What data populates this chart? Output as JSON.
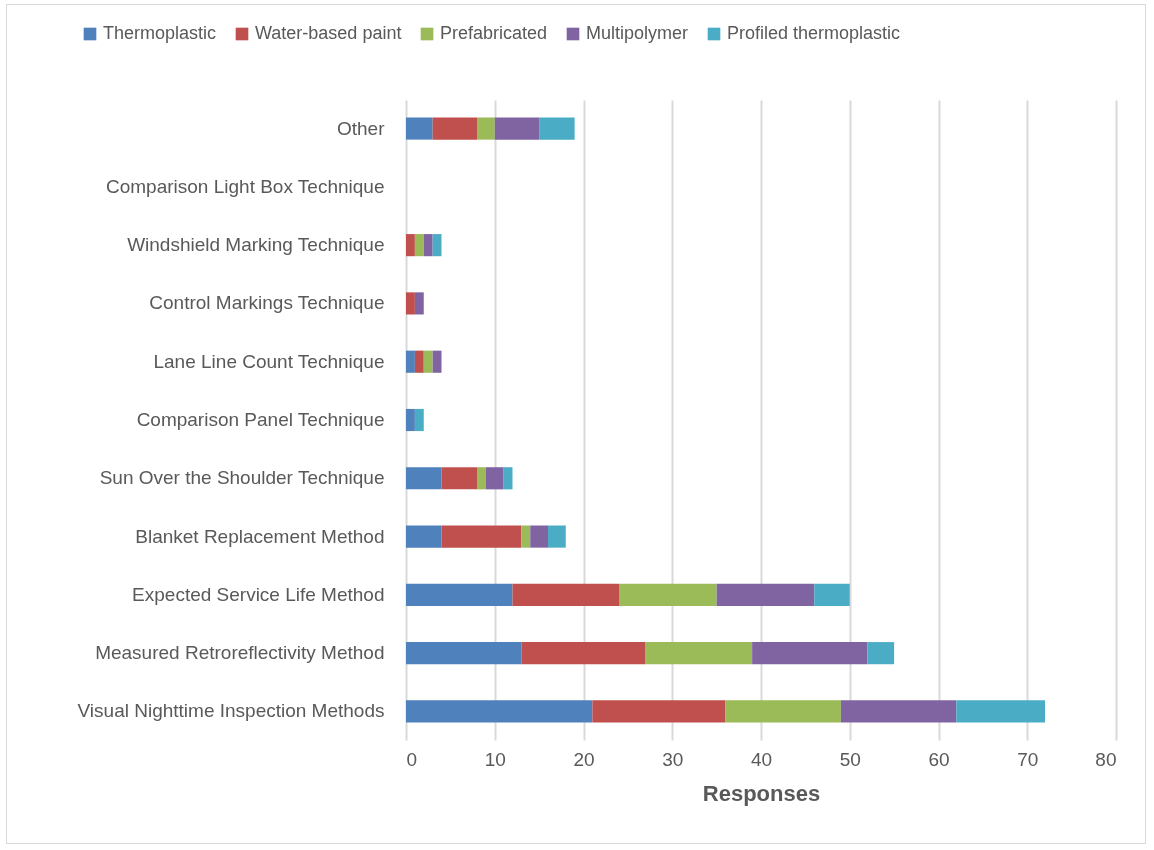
{
  "chart_data": {
    "type": "bar",
    "orientation": "horizontal",
    "stacked": true,
    "xlabel": "Responses",
    "categories": [
      "Other",
      "Comparison Light Box Technique",
      "Windshield Marking Technique",
      "Control Markings Technique",
      "Lane Line Count Technique",
      "Comparison Panel Technique",
      "Sun Over the Shoulder Technique",
      "Blanket Replacement Method",
      "Expected Service Life Method",
      "Measured Retroreflectivity Method",
      "Visual Nighttime Inspection Methods"
    ],
    "series": [
      {
        "name": "Thermoplastic",
        "color": "#4f81bd",
        "values": [
          3,
          0,
          0,
          0,
          1,
          1,
          4,
          4,
          12,
          13,
          21
        ]
      },
      {
        "name": "Water-based paint",
        "color": "#c0504d",
        "values": [
          5,
          0,
          1,
          1,
          1,
          0,
          4,
          9,
          12,
          14,
          15
        ]
      },
      {
        "name": "Prefabricated",
        "color": "#9bbb59",
        "values": [
          2,
          0,
          1,
          0,
          1,
          0,
          1,
          1,
          11,
          12,
          13
        ]
      },
      {
        "name": "Multipolymer",
        "color": "#8064a2",
        "values": [
          5,
          0,
          1,
          1,
          1,
          0,
          2,
          2,
          11,
          13,
          13
        ]
      },
      {
        "name": "Profiled thermoplastic",
        "color": "#4bacc6",
        "values": [
          4,
          0,
          1,
          0,
          0,
          1,
          1,
          2,
          4,
          3,
          10
        ]
      }
    ],
    "xlim": [
      0,
      80
    ],
    "xticks": [
      0,
      10,
      20,
      30,
      40,
      50,
      60,
      70,
      80
    ],
    "grid": "x",
    "legend": "top"
  }
}
